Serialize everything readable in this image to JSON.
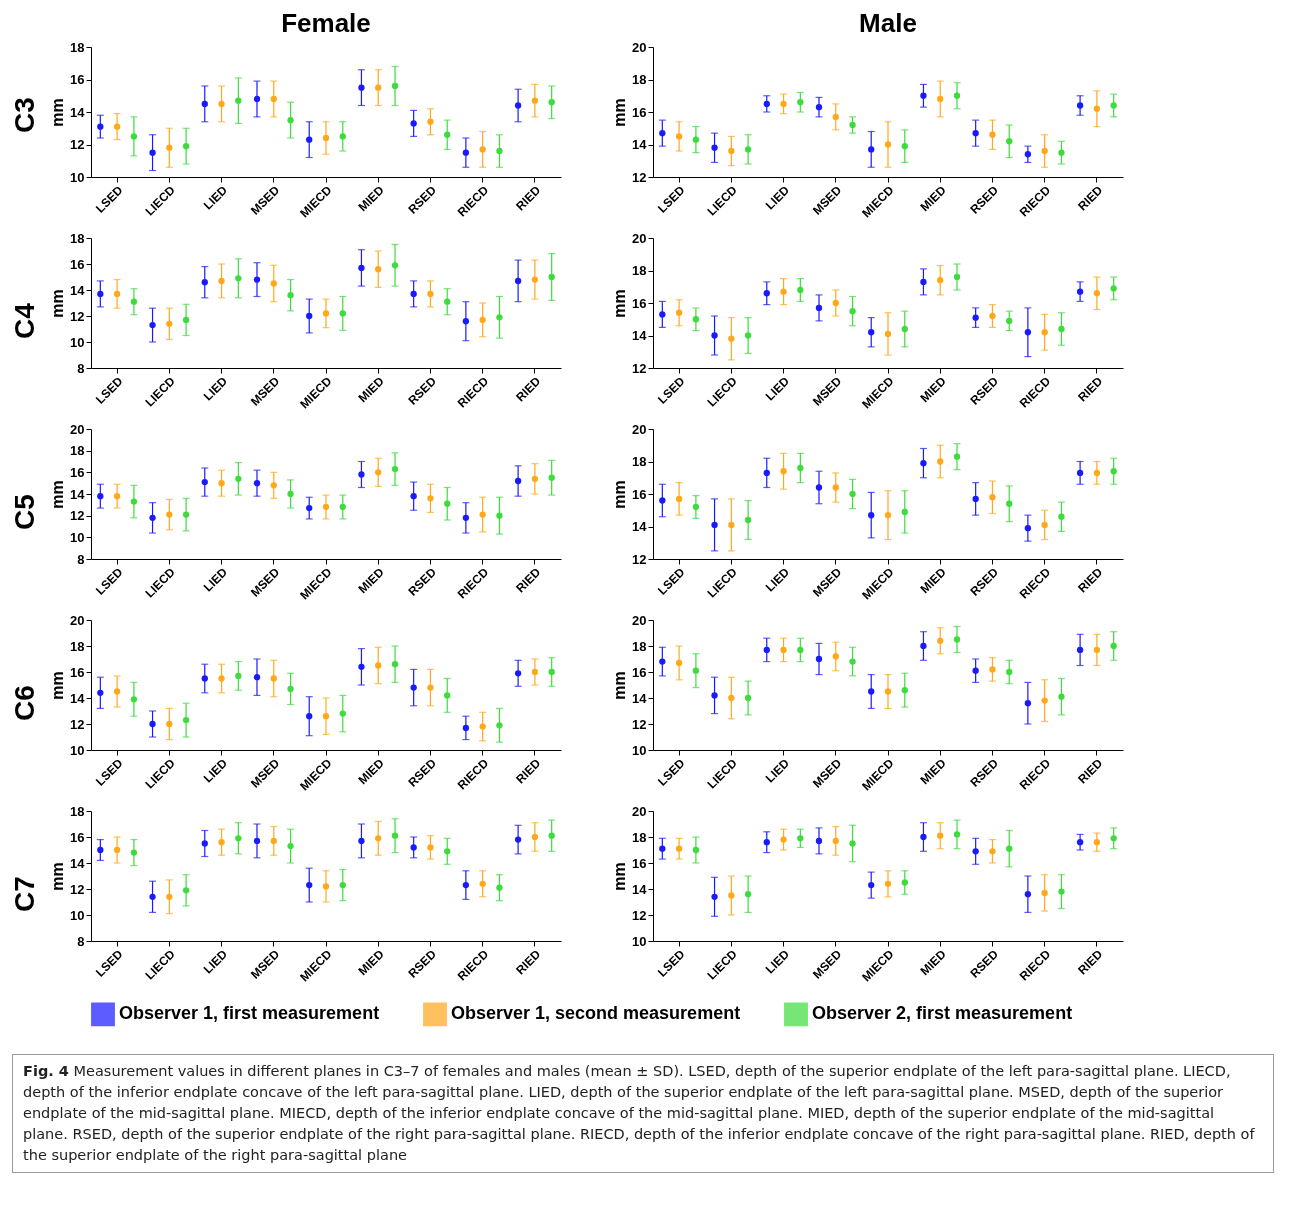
{
  "chart_data": [
    {
      "type": "scatter",
      "title": "Female",
      "annotations": [
        "C3"
      ],
      "ylabel": "mm",
      "categories": [
        "LSED",
        "LIECD",
        "LIED",
        "MSED",
        "MIECD",
        "MIED",
        "RSED",
        "RIECD",
        "RIED"
      ],
      "ylim": [
        10,
        18
      ],
      "yticks": [
        10,
        12,
        14,
        16,
        18
      ],
      "marker": "circle",
      "legend": "bottom",
      "series": [
        {
          "name": "Observer 1, first measurement",
          "color": "#1a1aff",
          "values": [
            13.1,
            11.5,
            14.5,
            14.8,
            12.3,
            15.5,
            13.3,
            11.5,
            14.4
          ],
          "errors": [
            0.7,
            1.1,
            1.1,
            1.1,
            1.1,
            1.1,
            0.8,
            0.9,
            1.0
          ]
        },
        {
          "name": "Observer 1, second measurement",
          "color": "#ffa81a",
          "values": [
            13.1,
            11.8,
            14.5,
            14.8,
            12.4,
            15.5,
            13.4,
            11.7,
            14.7
          ],
          "errors": [
            0.8,
            1.2,
            1.1,
            1.1,
            1.0,
            1.1,
            0.8,
            1.1,
            1.0
          ]
        },
        {
          "name": "Observer 2, first measurement",
          "color": "#3ddc3d",
          "values": [
            12.5,
            11.9,
            14.7,
            13.5,
            12.5,
            15.6,
            12.6,
            11.6,
            14.6
          ],
          "errors": [
            1.2,
            1.1,
            1.4,
            1.1,
            0.9,
            1.2,
            0.9,
            1.0,
            1.0
          ]
        }
      ]
    },
    {
      "type": "scatter",
      "title": "Male",
      "ylabel": "mm",
      "categories": [
        "LSED",
        "LIECD",
        "LIED",
        "MSED",
        "MIECD",
        "MIED",
        "RSED",
        "RIECD",
        "RIED"
      ],
      "ylim": [
        12,
        20
      ],
      "yticks": [
        12,
        14,
        16,
        18,
        20
      ],
      "marker": "circle",
      "legend": "bottom",
      "series": [
        {
          "name": "Observer 1, first measurement",
          "color": "#1a1aff",
          "values": [
            14.7,
            13.8,
            16.5,
            16.3,
            13.7,
            17.0,
            14.7,
            13.4,
            16.4
          ],
          "errors": [
            0.8,
            0.9,
            0.5,
            0.6,
            1.1,
            0.7,
            0.8,
            0.5,
            0.6
          ]
        },
        {
          "name": "Observer 1, second measurement",
          "color": "#ffa81a",
          "values": [
            14.5,
            13.6,
            16.5,
            15.7,
            14.0,
            16.8,
            14.6,
            13.6,
            16.2
          ],
          "errors": [
            0.9,
            0.9,
            0.6,
            0.8,
            1.4,
            1.1,
            0.9,
            1.0,
            1.1
          ]
        },
        {
          "name": "Observer 2, first measurement",
          "color": "#3ddc3d",
          "values": [
            14.3,
            13.7,
            16.6,
            15.2,
            13.9,
            17.0,
            14.2,
            13.5,
            16.4
          ],
          "errors": [
            0.8,
            0.9,
            0.6,
            0.5,
            1.0,
            0.8,
            1.0,
            0.7,
            0.7
          ]
        }
      ]
    },
    {
      "type": "scatter",
      "annotations": [
        "C4"
      ],
      "ylabel": "mm",
      "categories": [
        "LSED",
        "LIECD",
        "LIED",
        "MSED",
        "MIECD",
        "MIED",
        "RSED",
        "RIECD",
        "RIED"
      ],
      "ylim": [
        8,
        18
      ],
      "yticks": [
        8,
        10,
        12,
        14,
        16,
        18
      ],
      "marker": "circle",
      "legend": "bottom",
      "series": [
        {
          "name": "Observer 1, first measurement",
          "color": "#1a1aff",
          "values": [
            13.7,
            11.3,
            14.6,
            14.8,
            12.0,
            15.7,
            13.7,
            11.6,
            14.7
          ],
          "errors": [
            1.0,
            1.3,
            1.2,
            1.3,
            1.3,
            1.4,
            1.0,
            1.5,
            1.6
          ]
        },
        {
          "name": "Observer 1, second measurement",
          "color": "#ffa81a",
          "values": [
            13.7,
            11.4,
            14.7,
            14.5,
            12.2,
            15.6,
            13.7,
            11.7,
            14.8
          ],
          "errors": [
            1.1,
            1.2,
            1.3,
            1.4,
            1.1,
            1.4,
            1.0,
            1.3,
            1.5
          ]
        },
        {
          "name": "Observer 2, first measurement",
          "color": "#3ddc3d",
          "values": [
            13.1,
            11.7,
            14.9,
            13.6,
            12.2,
            15.9,
            13.1,
            11.9,
            15.0
          ],
          "errors": [
            1.0,
            1.2,
            1.5,
            1.2,
            1.3,
            1.6,
            1.0,
            1.6,
            1.8
          ]
        }
      ]
    },
    {
      "type": "scatter",
      "ylabel": "mm",
      "categories": [
        "LSED",
        "LIECD",
        "LIED",
        "MSED",
        "MIECD",
        "MIED",
        "RSED",
        "RIECD",
        "RIED"
      ],
      "ylim": [
        12,
        20
      ],
      "yticks": [
        12,
        14,
        16,
        18,
        20
      ],
      "marker": "circle",
      "legend": "bottom",
      "series": [
        {
          "name": "Observer 1, first measurement",
          "color": "#1a1aff",
          "values": [
            15.3,
            14.0,
            16.6,
            15.7,
            14.2,
            17.3,
            15.1,
            14.2,
            16.7
          ],
          "errors": [
            0.8,
            1.2,
            0.7,
            0.8,
            0.9,
            0.8,
            0.6,
            1.5,
            0.6
          ]
        },
        {
          "name": "Observer 1, second measurement",
          "color": "#ffa81a",
          "values": [
            15.4,
            13.8,
            16.7,
            16.0,
            14.1,
            17.4,
            15.2,
            14.2,
            16.6
          ],
          "errors": [
            0.8,
            1.3,
            0.8,
            0.8,
            1.3,
            0.9,
            0.7,
            1.1,
            1.0
          ]
        },
        {
          "name": "Observer 2, first measurement",
          "color": "#3ddc3d",
          "values": [
            15.0,
            14.0,
            16.8,
            15.5,
            14.4,
            17.6,
            14.9,
            14.4,
            16.9
          ],
          "errors": [
            0.7,
            1.1,
            0.7,
            0.9,
            1.1,
            0.8,
            0.6,
            1.0,
            0.7
          ]
        }
      ]
    },
    {
      "type": "scatter",
      "annotations": [
        "C5"
      ],
      "ylabel": "mm",
      "categories": [
        "LSED",
        "LIECD",
        "LIED",
        "MSED",
        "MIECD",
        "MIED",
        "RSED",
        "RIECD",
        "RIED"
      ],
      "ylim": [
        8,
        20
      ],
      "yticks": [
        8,
        10,
        12,
        14,
        16,
        18,
        20
      ],
      "marker": "circle",
      "legend": "bottom",
      "series": [
        {
          "name": "Observer 1, first measurement",
          "color": "#1a1aff",
          "values": [
            13.8,
            11.8,
            15.1,
            15.0,
            12.7,
            15.8,
            13.8,
            11.8,
            15.2
          ],
          "errors": [
            1.1,
            1.4,
            1.3,
            1.2,
            1.0,
            1.2,
            1.3,
            1.4,
            1.4
          ]
        },
        {
          "name": "Observer 1, second measurement",
          "color": "#ffa81a",
          "values": [
            13.8,
            12.1,
            15.0,
            14.8,
            12.8,
            16.0,
            13.6,
            12.1,
            15.4
          ],
          "errors": [
            1.1,
            1.4,
            1.2,
            1.2,
            1.1,
            1.3,
            1.3,
            1.6,
            1.4
          ]
        },
        {
          "name": "Observer 2, first measurement",
          "color": "#3ddc3d",
          "values": [
            13.3,
            12.1,
            15.4,
            14.0,
            12.8,
            16.3,
            13.1,
            12.0,
            15.5
          ],
          "errors": [
            1.5,
            1.5,
            1.5,
            1.3,
            1.1,
            1.5,
            1.5,
            1.7,
            1.6
          ]
        }
      ]
    },
    {
      "type": "scatter",
      "ylabel": "mm",
      "categories": [
        "LSED",
        "LIECD",
        "LIED",
        "MSED",
        "MIECD",
        "MIED",
        "RSED",
        "RIECD",
        "RIED"
      ],
      "ylim": [
        12,
        20
      ],
      "yticks": [
        12,
        14,
        16,
        18,
        20
      ],
      "marker": "circle",
      "legend": "bottom",
      "series": [
        {
          "name": "Observer 1, first measurement",
          "color": "#1a1aff",
          "values": [
            15.6,
            14.1,
            17.3,
            16.4,
            14.7,
            17.9,
            15.7,
            13.9,
            17.3
          ],
          "errors": [
            1.0,
            1.6,
            0.9,
            1.0,
            1.4,
            0.9,
            1.0,
            0.8,
            0.7
          ]
        },
        {
          "name": "Observer 1, second measurement",
          "color": "#ffa81a",
          "values": [
            15.7,
            14.1,
            17.4,
            16.4,
            14.7,
            18.0,
            15.8,
            14.1,
            17.3
          ],
          "errors": [
            1.0,
            1.6,
            1.1,
            0.9,
            1.5,
            1.0,
            1.0,
            0.9,
            0.7
          ]
        },
        {
          "name": "Observer 2, first measurement",
          "color": "#3ddc3d",
          "values": [
            15.2,
            14.4,
            17.6,
            16.0,
            14.9,
            18.3,
            15.4,
            14.6,
            17.4
          ],
          "errors": [
            0.7,
            1.2,
            0.9,
            0.9,
            1.3,
            0.8,
            1.1,
            0.9,
            0.8
          ]
        }
      ]
    },
    {
      "type": "scatter",
      "annotations": [
        "C6"
      ],
      "ylabel": "mm",
      "categories": [
        "LSED",
        "LIECD",
        "LIED",
        "MSED",
        "MIECD",
        "MIED",
        "RSED",
        "RIECD",
        "RIED"
      ],
      "ylim": [
        10,
        20
      ],
      "yticks": [
        10,
        12,
        14,
        16,
        18,
        20
      ],
      "marker": "circle",
      "legend": "bottom",
      "series": [
        {
          "name": "Observer 1, first measurement",
          "color": "#1a1aff",
          "values": [
            14.4,
            12.0,
            15.5,
            15.6,
            12.6,
            16.4,
            14.8,
            11.7,
            15.9
          ],
          "errors": [
            1.2,
            1.0,
            1.1,
            1.4,
            1.5,
            1.4,
            1.4,
            0.9,
            1.0
          ]
        },
        {
          "name": "Observer 1, second measurement",
          "color": "#ffa81a",
          "values": [
            14.5,
            12.0,
            15.5,
            15.5,
            12.6,
            16.5,
            14.8,
            11.8,
            16.0
          ],
          "errors": [
            1.2,
            1.2,
            1.1,
            1.4,
            1.4,
            1.4,
            1.4,
            1.1,
            1.0
          ]
        },
        {
          "name": "Observer 2, first measurement",
          "color": "#3ddc3d",
          "values": [
            13.9,
            12.3,
            15.7,
            14.7,
            12.8,
            16.6,
            14.2,
            11.9,
            16.0
          ],
          "errors": [
            1.3,
            1.3,
            1.1,
            1.2,
            1.4,
            1.4,
            1.3,
            1.3,
            1.1
          ]
        }
      ]
    },
    {
      "type": "scatter",
      "ylabel": "mm",
      "categories": [
        "LSED",
        "LIECD",
        "LIED",
        "MSED",
        "MIECD",
        "MIED",
        "RSED",
        "RIECD",
        "RIED"
      ],
      "ylim": [
        10,
        20
      ],
      "yticks": [
        10,
        12,
        14,
        16,
        18,
        20
      ],
      "marker": "circle",
      "legend": "bottom",
      "series": [
        {
          "name": "Observer 1, first measurement",
          "color": "#1a1aff",
          "values": [
            16.8,
            14.2,
            17.7,
            17.0,
            14.5,
            18.0,
            16.1,
            13.6,
            17.7
          ],
          "errors": [
            1.1,
            1.4,
            0.9,
            1.2,
            1.3,
            1.1,
            0.9,
            1.6,
            1.2
          ]
        },
        {
          "name": "Observer 1, second measurement",
          "color": "#ffa81a",
          "values": [
            16.7,
            14.0,
            17.7,
            17.2,
            14.5,
            18.4,
            16.2,
            13.8,
            17.7
          ],
          "errors": [
            1.3,
            1.6,
            0.9,
            1.1,
            1.3,
            1.0,
            0.9,
            1.6,
            1.2
          ]
        },
        {
          "name": "Observer 2, first measurement",
          "color": "#3ddc3d",
          "values": [
            16.1,
            14.0,
            17.7,
            16.8,
            14.6,
            18.5,
            16.0,
            14.1,
            18.0
          ],
          "errors": [
            1.3,
            1.3,
            0.9,
            1.1,
            1.3,
            1.0,
            0.9,
            1.4,
            1.1
          ]
        }
      ]
    },
    {
      "type": "scatter",
      "annotations": [
        "C7"
      ],
      "ylabel": "mm",
      "categories": [
        "LSED",
        "LIECD",
        "LIED",
        "MSED",
        "MIECD",
        "MIED",
        "RSED",
        "RIECD",
        "RIED"
      ],
      "ylim": [
        8,
        18
      ],
      "yticks": [
        8,
        10,
        12,
        14,
        16,
        18
      ],
      "marker": "circle",
      "legend": "bottom",
      "series": [
        {
          "name": "Observer 1, first measurement",
          "color": "#1a1aff",
          "values": [
            15.0,
            11.4,
            15.5,
            15.7,
            12.3,
            15.7,
            15.2,
            12.3,
            15.8
          ],
          "errors": [
            0.8,
            1.2,
            1.0,
            1.3,
            1.3,
            1.3,
            0.8,
            1.1,
            1.1
          ]
        },
        {
          "name": "Observer 1, second measurement",
          "color": "#ffa81a",
          "values": [
            15.0,
            11.4,
            15.6,
            15.7,
            12.2,
            15.9,
            15.2,
            12.4,
            16.0
          ],
          "errors": [
            1.0,
            1.3,
            1.0,
            1.1,
            1.2,
            1.3,
            0.9,
            1.0,
            1.1
          ]
        },
        {
          "name": "Observer 2, first measurement",
          "color": "#3ddc3d",
          "values": [
            14.8,
            11.9,
            15.9,
            15.3,
            12.3,
            16.1,
            14.9,
            12.1,
            16.1
          ],
          "errors": [
            1.0,
            1.2,
            1.2,
            1.3,
            1.2,
            1.3,
            1.0,
            1.0,
            1.2
          ]
        }
      ]
    },
    {
      "type": "scatter",
      "ylabel": "mm",
      "categories": [
        "LSED",
        "LIECD",
        "LIED",
        "MSED",
        "MIECD",
        "MIED",
        "RSED",
        "RIECD",
        "RIED"
      ],
      "ylim": [
        10,
        20
      ],
      "yticks": [
        10,
        12,
        14,
        16,
        18,
        20
      ],
      "marker": "circle",
      "legend": "bottom",
      "annotations": [
        "Fig. 4",
        "Measurement values in different planes in C3–7 of females and males (mean ± SD). LSED, depth of the superior endplate of the left para-sagittal plane. LIECD, depth of the inferior endplate concave of the left para-sagittal plane. LIED, depth of the superior endplate of the left para-sagittal plane. MSED, depth of the superior endplate of the mid-sagittal plane. MIECD, depth of the inferior endplate concave of the mid-sagittal plane. MIED, depth of the superior endplate of the mid-sagittal plane. RSED, depth of the superior endplate of the right para-sagittal plane. RIECD, depth of the inferior endplate concave of the right para-sagittal plane. RIED, depth of the superior endplate of the right para-sagittal plane"
      ],
      "series": [
        {
          "name": "Observer 1, first measurement",
          "color": "#1a1aff",
          "values": [
            17.1,
            13.4,
            17.6,
            17.7,
            14.3,
            18.0,
            16.9,
            13.6,
            17.6
          ],
          "errors": [
            0.8,
            1.5,
            0.8,
            1.0,
            1.0,
            1.1,
            1.0,
            1.4,
            0.6
          ]
        },
        {
          "name": "Observer 1, second measurement",
          "color": "#ffa81a",
          "values": [
            17.1,
            13.5,
            17.8,
            17.7,
            14.4,
            18.1,
            16.9,
            13.7,
            17.6
          ],
          "errors": [
            0.8,
            1.5,
            0.8,
            1.1,
            1.0,
            1.0,
            0.9,
            1.4,
            0.7
          ]
        },
        {
          "name": "Observer 2, first measurement",
          "color": "#3ddc3d",
          "values": [
            17.0,
            13.6,
            17.9,
            17.5,
            14.5,
            18.2,
            17.1,
            13.8,
            17.9
          ],
          "errors": [
            1.0,
            1.4,
            0.7,
            1.4,
            0.9,
            1.1,
            1.4,
            1.3,
            0.8
          ]
        }
      ]
    }
  ]
}
